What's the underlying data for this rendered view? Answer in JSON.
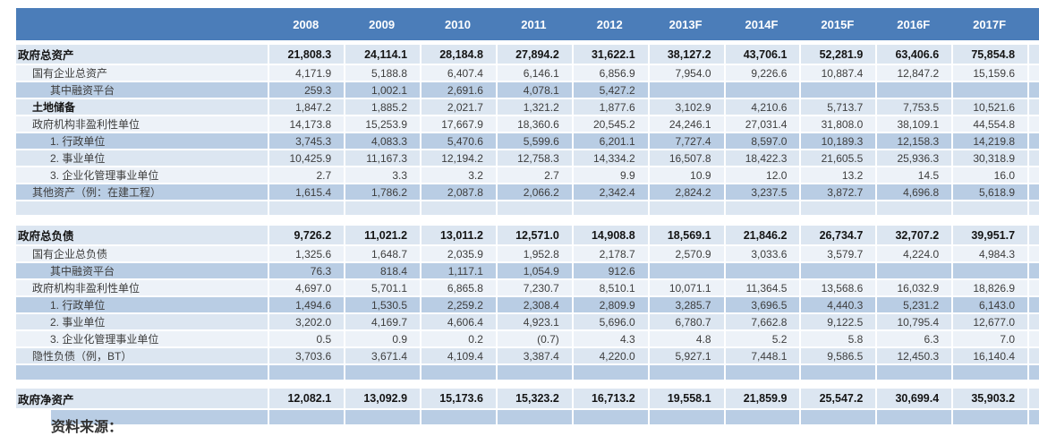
{
  "source_note": "资料来源：",
  "colors": {
    "header_bg": "#4b7db9",
    "band_light": "#dce6f1",
    "band_extra_light": "#edf2f8",
    "band_medium": "#b9cde4",
    "header_text": "#ffffff"
  },
  "table": {
    "columns": [
      "2008",
      "2009",
      "2010",
      "2011",
      "2012",
      "2013F",
      "2014F",
      "2015F",
      "2016F",
      "2017F"
    ],
    "sections": [
      {
        "name": "assets",
        "rows": [
          {
            "label": "政府总资产",
            "indent": 0,
            "band": "L",
            "total": true,
            "values": [
              "21,808.3",
              "24,114.1",
              "28,184.8",
              "27,894.2",
              "31,622.1",
              "38,127.2",
              "43,706.1",
              "52,281.9",
              "63,406.6",
              "75,854.8"
            ]
          },
          {
            "label": "国有企业总资产",
            "indent": 1,
            "band": "XL",
            "values": [
              "4,171.9",
              "5,188.8",
              "6,407.4",
              "6,146.1",
              "6,856.9",
              "7,954.0",
              "9,226.6",
              "10,887.4",
              "12,847.2",
              "15,159.6"
            ]
          },
          {
            "label": "其中融资平台",
            "indent": 2,
            "band": "M",
            "values": [
              "259.3",
              "1,002.1",
              "2,691.6",
              "4,078.1",
              "5,427.2",
              "",
              "",
              "",
              "",
              ""
            ]
          },
          {
            "label": "土地储备",
            "indent": 1,
            "band": "L",
            "bold_label": true,
            "values": [
              "1,847.2",
              "1,885.2",
              "2,021.7",
              "1,321.2",
              "1,877.6",
              "3,102.9",
              "4,210.6",
              "5,713.7",
              "7,753.5",
              "10,521.6"
            ]
          },
          {
            "label": "政府机构非盈利性单位",
            "indent": 1,
            "band": "XL",
            "values": [
              "14,173.8",
              "15,253.9",
              "17,667.9",
              "18,360.6",
              "20,545.2",
              "24,246.1",
              "27,031.4",
              "31,808.0",
              "38,109.1",
              "44,554.8"
            ]
          },
          {
            "label": "1. 行政单位",
            "indent": 2,
            "band": "M",
            "values": [
              "3,745.3",
              "4,083.3",
              "5,470.6",
              "5,599.6",
              "6,201.1",
              "7,727.4",
              "8,597.0",
              "10,189.3",
              "12,158.3",
              "14,219.8"
            ]
          },
          {
            "label": "2. 事业单位",
            "indent": 2,
            "band": "L",
            "values": [
              "10,425.9",
              "11,167.3",
              "12,194.2",
              "12,758.3",
              "14,334.2",
              "16,507.8",
              "18,422.3",
              "21,605.5",
              "25,936.3",
              "30,318.9"
            ]
          },
          {
            "label": "3. 企业化管理事业单位",
            "indent": 2,
            "band": "XL",
            "values": [
              "2.7",
              "3.3",
              "3.2",
              "2.7",
              "9.9",
              "10.9",
              "12.0",
              "13.2",
              "14.5",
              "16.0"
            ]
          },
          {
            "label": "其他资产（例：在建工程）",
            "indent": 1,
            "band": "M",
            "values": [
              "1,615.4",
              "1,786.2",
              "2,087.8",
              "2,066.2",
              "2,342.4",
              "2,824.2",
              "3,237.5",
              "3,872.7",
              "4,696.8",
              "5,618.9"
            ]
          },
          {
            "label": "",
            "indent": 0,
            "band": "L",
            "values": [
              "",
              "",
              "",
              "",
              "",
              "",
              "",
              "",
              "",
              ""
            ]
          }
        ]
      },
      {
        "name": "liabilities",
        "rows": [
          {
            "label": "政府总负债",
            "indent": 0,
            "band": "L",
            "total": true,
            "values": [
              "9,726.2",
              "11,021.2",
              "13,011.2",
              "12,571.0",
              "14,908.8",
              "18,569.1",
              "21,846.2",
              "26,734.7",
              "32,707.2",
              "39,951.7"
            ]
          },
          {
            "label": "国有企业总负债",
            "indent": 1,
            "band": "XL",
            "values": [
              "1,325.6",
              "1,648.7",
              "2,035.9",
              "1,952.8",
              "2,178.7",
              "2,570.9",
              "3,033.6",
              "3,579.7",
              "4,224.0",
              "4,984.3"
            ]
          },
          {
            "label": "其中融资平台",
            "indent": 2,
            "band": "M",
            "values": [
              "76.3",
              "818.4",
              "1,117.1",
              "1,054.9",
              "912.6",
              "",
              "",
              "",
              "",
              ""
            ]
          },
          {
            "label": "政府机构非盈利性单位",
            "indent": 1,
            "band": "XL",
            "values": [
              "4,697.0",
              "5,701.1",
              "6,865.8",
              "7,230.7",
              "8,510.1",
              "10,071.1",
              "11,364.5",
              "13,568.6",
              "16,032.9",
              "18,826.9"
            ]
          },
          {
            "label": "1. 行政单位",
            "indent": 2,
            "band": "M",
            "values": [
              "1,494.6",
              "1,530.5",
              "2,259.2",
              "2,308.4",
              "2,809.9",
              "3,285.7",
              "3,696.5",
              "4,440.3",
              "5,231.2",
              "6,143.0"
            ]
          },
          {
            "label": "2. 事业单位",
            "indent": 2,
            "band": "L",
            "values": [
              "3,202.0",
              "4,169.7",
              "4,606.4",
              "4,923.1",
              "5,696.0",
              "6,780.7",
              "7,662.8",
              "9,122.5",
              "10,795.4",
              "12,677.0"
            ]
          },
          {
            "label": "3. 企业化管理事业单位",
            "indent": 2,
            "band": "XL",
            "values": [
              "0.5",
              "0.9",
              "0.2",
              "(0.7)",
              "4.3",
              "4.8",
              "5.2",
              "5.8",
              "6.3",
              "7.0"
            ]
          },
          {
            "label": "隐性负债（例，BT）",
            "indent": 1,
            "band": "L",
            "values": [
              "3,703.6",
              "3,671.4",
              "4,109.4",
              "3,387.4",
              "4,220.0",
              "5,927.1",
              "7,448.1",
              "9,586.5",
              "12,450.3",
              "16,140.4"
            ]
          },
          {
            "label": "",
            "indent": 0,
            "band": "M",
            "empty_tall": true,
            "values": [
              "",
              "",
              "",
              "",
              "",
              "",
              "",
              "",
              "",
              ""
            ]
          }
        ]
      },
      {
        "name": "net-assets",
        "rows": [
          {
            "label": "政府净资产",
            "indent": 0,
            "band": "L",
            "total": true,
            "net": true,
            "values": [
              "12,082.1",
              "13,092.9",
              "15,173.6",
              "15,323.2",
              "16,713.2",
              "19,558.1",
              "21,859.9",
              "25,547.2",
              "30,699.4",
              "35,903.2"
            ]
          },
          {
            "label": "",
            "indent": 0,
            "band": "M",
            "empty_tall": true,
            "inset": true,
            "values": [
              "",
              "",
              "",
              "",
              "",
              "",
              "",
              "",
              "",
              ""
            ]
          }
        ]
      }
    ]
  }
}
